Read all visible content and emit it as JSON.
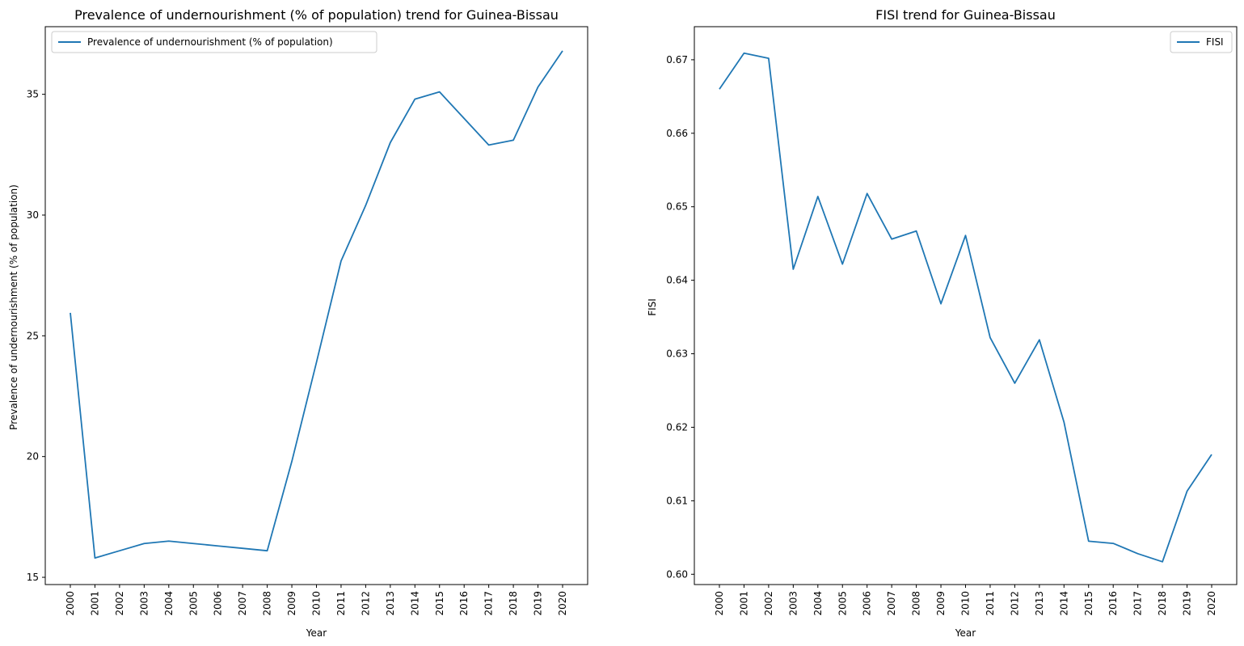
{
  "chart_data": [
    {
      "type": "line",
      "title": "Prevalence of undernourishment (% of population) trend for Guinea-Bissau",
      "xlabel": "Year",
      "ylabel": "Prevalence of undernourishment (% of population)",
      "x": [
        "2000",
        "2001",
        "2002",
        "2003",
        "2004",
        "2005",
        "2006",
        "2007",
        "2008",
        "2009",
        "2010",
        "2011",
        "2012",
        "2013",
        "2014",
        "2015",
        "2016",
        "2017",
        "2018",
        "2019",
        "2020"
      ],
      "yticks": [
        15,
        20,
        25,
        30,
        35
      ],
      "ylim": [
        14.7,
        37.8
      ],
      "grid": false,
      "legend_position": "upper left",
      "color": "#1f77b4",
      "series": [
        {
          "name": "Prevalence of undernourishment (% of population)",
          "values": [
            25.95,
            15.8,
            16.1,
            16.4,
            16.5,
            16.4,
            16.3,
            16.2,
            16.1,
            19.8,
            23.9,
            28.1,
            30.4,
            33.0,
            34.8,
            35.1,
            34.0,
            32.9,
            33.1,
            35.3,
            36.8
          ]
        }
      ]
    },
    {
      "type": "line",
      "title": "FISI trend for Guinea-Bissau",
      "xlabel": "Year",
      "ylabel": "FISI",
      "x": [
        "2000",
        "2001",
        "2002",
        "2003",
        "2004",
        "2005",
        "2006",
        "2007",
        "2008",
        "2009",
        "2010",
        "2011",
        "2012",
        "2013",
        "2014",
        "2015",
        "2016",
        "2017",
        "2018",
        "2019",
        "2020"
      ],
      "yticks": [
        0.6,
        0.61,
        0.62,
        0.63,
        0.64,
        0.65,
        0.66,
        0.67
      ],
      "ylim": [
        0.5986,
        0.6745
      ],
      "grid": false,
      "legend_position": "upper right",
      "color": "#1f77b4",
      "series": [
        {
          "name": "FISI",
          "values": [
            0.666,
            0.6709,
            0.6702,
            0.6415,
            0.6514,
            0.6422,
            0.6518,
            0.6456,
            0.6467,
            0.6368,
            0.6461,
            0.6322,
            0.626,
            0.6319,
            0.6207,
            0.6045,
            0.6042,
            0.6028,
            0.6017,
            0.6113,
            0.6163
          ]
        }
      ]
    }
  ]
}
